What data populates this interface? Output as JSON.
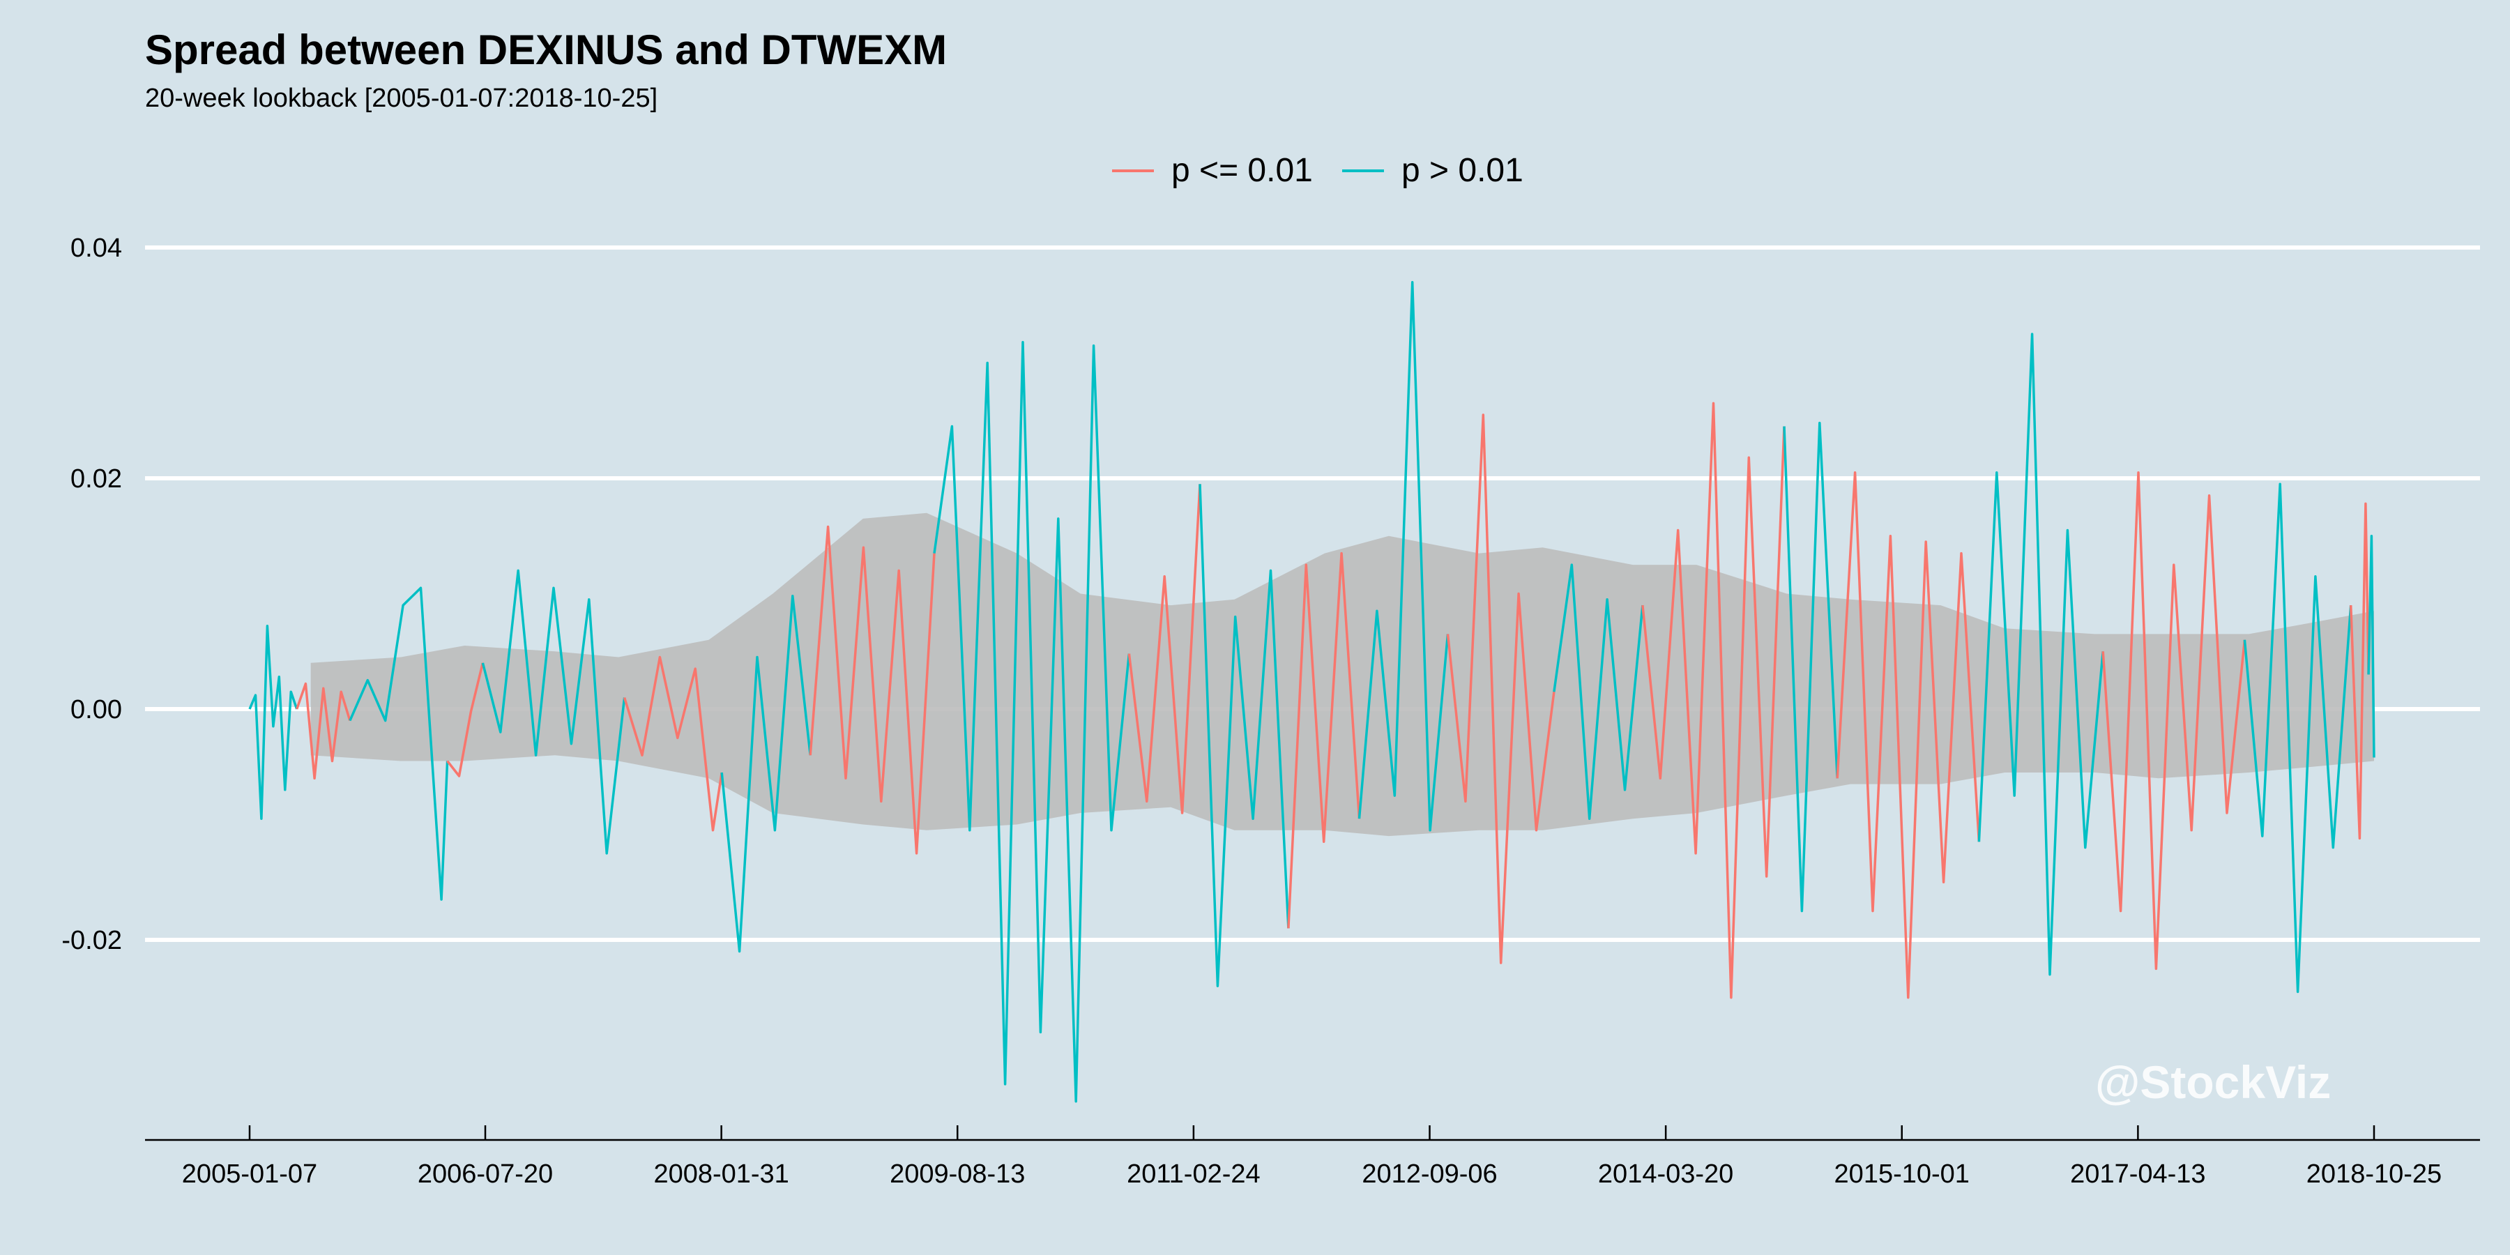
{
  "chart_data": {
    "type": "line",
    "title": "Spread between DEXINUS and DTWEXM",
    "subtitle": "20-week lookback [2005-01-07:2018-10-25]",
    "xlabel": "",
    "ylabel": "",
    "x_range": [
      "2005-01-07",
      "2018-10-25"
    ],
    "ylim": [
      -0.0375,
      0.0375
    ],
    "y_ticks": [
      0.04,
      0.02,
      0.0,
      -0.02
    ],
    "y_tick_labels": [
      "0.04",
      "0.02",
      "0.00",
      "-0.02"
    ],
    "x_ticks": [
      "2005-01-07",
      "2006-07-20",
      "2008-01-31",
      "2009-08-13",
      "2011-02-24",
      "2012-09-06",
      "2014-03-20",
      "2015-10-01",
      "2017-04-13",
      "2018-10-25"
    ],
    "grid": "horizontal",
    "legend_position": "top",
    "legend": [
      {
        "label": "p <= 0.01",
        "color": "#f8766d"
      },
      {
        "label": "p > 0.01",
        "color": "#00bfc4"
      }
    ],
    "band": {
      "label": "",
      "color": "#bdbdbd",
      "x": [
        "2005-06-01",
        "2006-01-01",
        "2006-06-01",
        "2007-01-01",
        "2007-06-01",
        "2008-01-01",
        "2008-06-01",
        "2009-01-01",
        "2009-06-01",
        "2010-01-01",
        "2010-06-01",
        "2011-01-01",
        "2011-06-01",
        "2012-01-01",
        "2012-06-01",
        "2013-01-01",
        "2013-06-01",
        "2014-01-01",
        "2014-06-01",
        "2015-01-01",
        "2015-06-01",
        "2016-01-01",
        "2016-06-01",
        "2017-01-01",
        "2017-06-01",
        "2018-01-01",
        "2018-06-01",
        "2018-10-25"
      ],
      "upper": [
        0.004,
        0.0045,
        0.0055,
        0.005,
        0.0045,
        0.006,
        0.01,
        0.0165,
        0.017,
        0.0135,
        0.01,
        0.009,
        0.0095,
        0.0135,
        0.015,
        0.0135,
        0.014,
        0.0125,
        0.0125,
        0.01,
        0.0095,
        0.009,
        0.007,
        0.0065,
        0.0065,
        0.0065,
        0.0075,
        0.0085
      ],
      "lower": [
        -0.004,
        -0.0045,
        -0.0045,
        -0.004,
        -0.0045,
        -0.006,
        -0.009,
        -0.01,
        -0.0105,
        -0.01,
        -0.009,
        -0.0085,
        -0.0105,
        -0.0105,
        -0.011,
        -0.0105,
        -0.0105,
        -0.0095,
        -0.009,
        -0.0075,
        -0.0065,
        -0.0065,
        -0.0055,
        -0.0055,
        -0.006,
        -0.0055,
        -0.005,
        -0.0045
      ]
    },
    "series": [
      {
        "label": "p > 0.01",
        "color": "#00bfc4",
        "points": [
          [
            "2005-01-07",
            0.0
          ],
          [
            "2005-01-21",
            0.0012
          ],
          [
            "2005-02-04",
            -0.0095
          ],
          [
            "2005-02-18",
            0.0072
          ],
          [
            "2005-03-04",
            -0.0015
          ],
          [
            "2005-03-18",
            0.0028
          ],
          [
            "2005-04-01",
            -0.007
          ],
          [
            "2005-04-15",
            0.0015
          ],
          [
            "2005-04-29",
            0.0
          ]
        ]
      },
      {
        "label": "p <= 0.01",
        "color": "#f8766d",
        "points": [
          [
            "2005-04-29",
            0.0
          ],
          [
            "2005-05-20",
            0.0022
          ],
          [
            "2005-06-10",
            -0.006
          ],
          [
            "2005-07-01",
            0.0018
          ],
          [
            "2005-07-22",
            -0.0045
          ],
          [
            "2005-08-12",
            0.0015
          ],
          [
            "2005-09-02",
            -0.001
          ]
        ]
      },
      {
        "label": "p > 0.01",
        "color": "#00bfc4",
        "points": [
          [
            "2005-09-02",
            -0.001
          ],
          [
            "2005-10-14",
            0.0025
          ],
          [
            "2005-11-25",
            -0.001
          ],
          [
            "2006-01-06",
            0.009
          ],
          [
            "2006-02-17",
            0.0105
          ],
          [
            "2006-03-10",
            -0.0012
          ],
          [
            "2006-04-07",
            -0.0165
          ],
          [
            "2006-04-21",
            -0.0045
          ]
        ]
      },
      {
        "label": "p <= 0.01",
        "color": "#f8766d",
        "points": [
          [
            "2006-04-21",
            -0.0045
          ],
          [
            "2006-05-19",
            -0.0058
          ],
          [
            "2006-06-16",
            -0.0002
          ],
          [
            "2006-07-14",
            0.004
          ]
        ]
      },
      {
        "label": "p > 0.01",
        "color": "#00bfc4",
        "points": [
          [
            "2006-07-14",
            0.004
          ],
          [
            "2006-08-25",
            -0.002
          ],
          [
            "2006-10-06",
            0.012
          ],
          [
            "2006-11-17",
            -0.004
          ],
          [
            "2006-12-29",
            0.0105
          ],
          [
            "2007-02-09",
            -0.003
          ],
          [
            "2007-03-23",
            0.0095
          ],
          [
            "2007-05-04",
            -0.0125
          ],
          [
            "2007-06-15",
            0.001
          ]
        ]
      },
      {
        "label": "p <= 0.01",
        "color": "#f8766d",
        "points": [
          [
            "2007-06-15",
            0.001
          ],
          [
            "2007-07-27",
            -0.004
          ],
          [
            "2007-09-07",
            0.0045
          ],
          [
            "2007-10-19",
            -0.0025
          ],
          [
            "2007-11-30",
            0.0035
          ],
          [
            "2008-01-11",
            -0.0105
          ],
          [
            "2008-02-01",
            -0.0055
          ]
        ]
      },
      {
        "label": "p > 0.01",
        "color": "#00bfc4",
        "points": [
          [
            "2008-02-01",
            -0.0055
          ],
          [
            "2008-03-14",
            -0.021
          ],
          [
            "2008-04-25",
            0.0045
          ],
          [
            "2008-06-06",
            -0.0105
          ],
          [
            "2008-07-18",
            0.0098
          ],
          [
            "2008-08-29",
            -0.004
          ]
        ]
      },
      {
        "label": "p <= 0.01",
        "color": "#f8766d",
        "points": [
          [
            "2008-08-29",
            -0.004
          ],
          [
            "2008-10-10",
            0.0158
          ],
          [
            "2008-11-21",
            -0.006
          ],
          [
            "2009-01-02",
            0.014
          ],
          [
            "2009-02-13",
            -0.008
          ],
          [
            "2009-03-27",
            0.012
          ],
          [
            "2009-05-08",
            -0.0125
          ],
          [
            "2009-06-19",
            0.0135
          ]
        ]
      },
      {
        "label": "p > 0.01",
        "color": "#00bfc4",
        "points": [
          [
            "2009-06-19",
            0.0135
          ],
          [
            "2009-07-31",
            0.0245
          ],
          [
            "2009-09-11",
            -0.0105
          ],
          [
            "2009-10-23",
            0.03
          ],
          [
            "2009-12-04",
            -0.0325
          ],
          [
            "2010-01-15",
            0.0318
          ],
          [
            "2010-02-26",
            -0.028
          ],
          [
            "2010-04-09",
            0.0165
          ],
          [
            "2010-05-21",
            -0.034
          ],
          [
            "2010-07-02",
            0.0315
          ],
          [
            "2010-08-13",
            -0.0105
          ],
          [
            "2010-09-24",
            0.0048
          ]
        ]
      },
      {
        "label": "p <= 0.01",
        "color": "#f8766d",
        "points": [
          [
            "2010-09-24",
            0.0048
          ],
          [
            "2010-11-05",
            -0.008
          ],
          [
            "2010-12-17",
            0.0115
          ],
          [
            "2011-01-28",
            -0.009
          ],
          [
            "2011-03-11",
            0.0195
          ]
        ]
      },
      {
        "label": "p > 0.01",
        "color": "#00bfc4",
        "points": [
          [
            "2011-03-11",
            0.0195
          ],
          [
            "2011-04-22",
            -0.024
          ],
          [
            "2011-06-03",
            0.008
          ],
          [
            "2011-07-15",
            -0.0095
          ],
          [
            "2011-08-26",
            0.012
          ],
          [
            "2011-10-07",
            -0.019
          ]
        ]
      },
      {
        "label": "p <= 0.01",
        "color": "#f8766d",
        "points": [
          [
            "2011-10-07",
            -0.019
          ],
          [
            "2011-11-18",
            0.0125
          ],
          [
            "2011-12-30",
            -0.0115
          ],
          [
            "2012-02-10",
            0.0135
          ],
          [
            "2012-03-23",
            -0.0095
          ]
        ]
      },
      {
        "label": "p > 0.01",
        "color": "#00bfc4",
        "points": [
          [
            "2012-03-23",
            -0.0095
          ],
          [
            "2012-05-04",
            0.0085
          ],
          [
            "2012-06-15",
            -0.0075
          ],
          [
            "2012-07-27",
            0.037
          ],
          [
            "2012-09-07",
            -0.0105
          ],
          [
            "2012-10-19",
            0.0065
          ]
        ]
      },
      {
        "label": "p <= 0.01",
        "color": "#f8766d",
        "points": [
          [
            "2012-10-19",
            0.0065
          ],
          [
            "2012-11-30",
            -0.008
          ],
          [
            "2013-01-11",
            0.0255
          ],
          [
            "2013-02-22",
            -0.022
          ],
          [
            "2013-04-05",
            0.01
          ],
          [
            "2013-05-17",
            -0.0105
          ],
          [
            "2013-06-28",
            0.0015
          ]
        ]
      },
      {
        "label": "p > 0.01",
        "color": "#00bfc4",
        "points": [
          [
            "2013-06-28",
            0.0015
          ],
          [
            "2013-08-09",
            0.0125
          ],
          [
            "2013-09-20",
            -0.0095
          ],
          [
            "2013-11-01",
            0.0095
          ],
          [
            "2013-12-13",
            -0.007
          ],
          [
            "2014-01-24",
            0.009
          ]
        ]
      },
      {
        "label": "p <= 0.01",
        "color": "#f8766d",
        "points": [
          [
            "2014-01-24",
            0.009
          ],
          [
            "2014-03-07",
            -0.006
          ],
          [
            "2014-04-18",
            0.0155
          ],
          [
            "2014-05-30",
            -0.0125
          ],
          [
            "2014-07-11",
            0.0265
          ],
          [
            "2014-08-22",
            -0.025
          ],
          [
            "2014-10-03",
            0.0218
          ],
          [
            "2014-11-14",
            -0.0145
          ],
          [
            "2014-12-26",
            0.0245
          ]
        ]
      },
      {
        "label": "p > 0.01",
        "color": "#00bfc4",
        "points": [
          [
            "2014-12-26",
            0.0245
          ],
          [
            "2015-02-06",
            -0.0175
          ],
          [
            "2015-03-20",
            0.0248
          ],
          [
            "2015-05-01",
            -0.006
          ]
        ]
      },
      {
        "label": "p <= 0.01",
        "color": "#f8766d",
        "points": [
          [
            "2015-05-01",
            -0.006
          ],
          [
            "2015-06-12",
            0.0205
          ],
          [
            "2015-07-24",
            -0.0175
          ],
          [
            "2015-09-04",
            0.015
          ],
          [
            "2015-10-16",
            -0.025
          ],
          [
            "2015-11-27",
            0.0145
          ],
          [
            "2016-01-08",
            -0.015
          ],
          [
            "2016-02-19",
            0.0135
          ],
          [
            "2016-04-01",
            -0.0115
          ]
        ]
      },
      {
        "label": "p > 0.01",
        "color": "#00bfc4",
        "points": [
          [
            "2016-04-01",
            -0.0115
          ],
          [
            "2016-05-13",
            0.0205
          ],
          [
            "2016-06-24",
            -0.0075
          ],
          [
            "2016-08-05",
            0.0325
          ],
          [
            "2016-09-16",
            -0.023
          ],
          [
            "2016-10-28",
            0.0155
          ],
          [
            "2016-12-09",
            -0.012
          ],
          [
            "2017-01-20",
            0.005
          ]
        ]
      },
      {
        "label": "p <= 0.01",
        "color": "#f8766d",
        "points": [
          [
            "2017-01-20",
            0.005
          ],
          [
            "2017-03-03",
            -0.0175
          ],
          [
            "2017-04-14",
            0.0205
          ],
          [
            "2017-05-26",
            -0.0225
          ],
          [
            "2017-07-07",
            0.0125
          ],
          [
            "2017-08-18",
            -0.0105
          ],
          [
            "2017-09-29",
            0.0185
          ],
          [
            "2017-11-10",
            -0.009
          ],
          [
            "2017-12-22",
            0.006
          ]
        ]
      },
      {
        "label": "p > 0.01",
        "color": "#00bfc4",
        "points": [
          [
            "2017-12-22",
            0.006
          ],
          [
            "2018-02-02",
            -0.011
          ],
          [
            "2018-03-16",
            0.0195
          ],
          [
            "2018-04-27",
            -0.0245
          ],
          [
            "2018-06-08",
            0.0115
          ],
          [
            "2018-07-20",
            -0.012
          ],
          [
            "2018-08-31",
            0.009
          ]
        ]
      },
      {
        "label": "p <= 0.01",
        "color": "#f8766d",
        "points": [
          [
            "2018-08-31",
            0.009
          ],
          [
            "2018-09-21",
            -0.0112
          ],
          [
            "2018-10-05",
            0.0178
          ],
          [
            "2018-10-12",
            0.003
          ]
        ]
      },
      {
        "label": "p > 0.01",
        "color": "#00bfc4",
        "points": [
          [
            "2018-10-12",
            0.003
          ],
          [
            "2018-10-19",
            0.015
          ],
          [
            "2018-10-25",
            -0.0042
          ]
        ]
      }
    ]
  },
  "watermark": "@StockViz",
  "colors": {
    "background": "#d5e3ea",
    "grid": "#ffffff",
    "band": "#bdbdbd"
  }
}
